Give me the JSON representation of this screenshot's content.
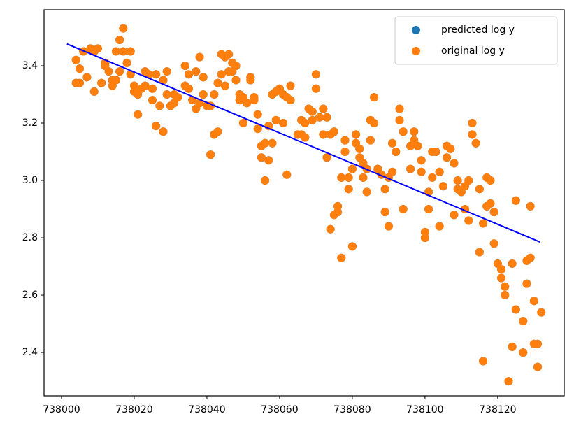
{
  "chart_data": {
    "type": "scatter",
    "x": [
      738004,
      738004,
      738005,
      738005,
      738006,
      738007,
      738008,
      738009,
      738009,
      738010,
      738011,
      738012,
      738012,
      738013,
      738014,
      738014,
      738015,
      738015,
      738016,
      738016,
      738017,
      738017,
      738018,
      738019,
      738019,
      738020,
      738020,
      738021,
      738021,
      738022,
      738023,
      738023,
      738024,
      738025,
      738025,
      738026,
      738026,
      738027,
      738028,
      738028,
      738029,
      738029,
      738030,
      738031,
      738031,
      738032,
      738034,
      738034,
      738035,
      738035,
      738036,
      738037,
      738037,
      738038,
      738038,
      738039,
      738039,
      738040,
      738041,
      738041,
      738042,
      738042,
      738043,
      738043,
      738044,
      738044,
      738045,
      738045,
      738046,
      738046,
      738047,
      738047,
      738048,
      738048,
      738049,
      738049,
      738050,
      738050,
      738051,
      738052,
      738052,
      738053,
      738053,
      738054,
      738054,
      738055,
      738055,
      738056,
      738056,
      738057,
      738057,
      738058,
      738058,
      738059,
      738059,
      738060,
      738061,
      738061,
      738062,
      738062,
      738063,
      738063,
      738065,
      738066,
      738066,
      738067,
      738067,
      738068,
      738069,
      738069,
      738070,
      738070,
      738071,
      738072,
      738072,
      738073,
      738073,
      738074,
      738074,
      738075,
      738075,
      738076,
      738076,
      738077,
      738077,
      738078,
      738078,
      738079,
      738079,
      738080,
      738080,
      738081,
      738081,
      738082,
      738082,
      738083,
      738083,
      738084,
      738084,
      738085,
      738085,
      738086,
      738086,
      738087,
      738088,
      738089,
      738089,
      738090,
      738090,
      738091,
      738091,
      738092,
      738093,
      738093,
      738094,
      738094,
      738096,
      738096,
      738097,
      738097,
      738098,
      738099,
      738099,
      738100,
      738100,
      738101,
      738101,
      738102,
      738102,
      738103,
      738104,
      738104,
      738105,
      738106,
      738106,
      738107,
      738108,
      738108,
      738109,
      738109,
      738110,
      738111,
      738111,
      738112,
      738112,
      738113,
      738113,
      738114,
      738115,
      738115,
      738116,
      738116,
      738117,
      738117,
      738118,
      738118,
      738119,
      738119,
      738120,
      738121,
      738121,
      738122,
      738122,
      738123,
      738124,
      738124,
      738125,
      738125,
      738127,
      738127,
      738128,
      738128,
      738129,
      738129,
      738130,
      738130,
      738131,
      738131,
      738132
    ],
    "series": [
      {
        "name": "predicted log y",
        "color": "#1f77b4",
        "values": [
          3.42,
          3.34,
          3.34,
          3.39,
          3.45,
          3.36,
          3.46,
          3.45,
          3.31,
          3.46,
          3.34,
          3.4,
          3.41,
          3.38,
          3.35,
          3.33,
          3.45,
          3.35,
          3.49,
          3.38,
          3.53,
          3.45,
          3.41,
          3.37,
          3.45,
          3.33,
          3.31,
          3.23,
          3.3,
          3.32,
          3.38,
          3.33,
          3.37,
          3.28,
          3.32,
          3.19,
          3.37,
          3.26,
          3.35,
          3.17,
          3.38,
          3.3,
          3.26,
          3.27,
          3.3,
          3.29,
          3.4,
          3.33,
          3.37,
          3.32,
          3.28,
          3.38,
          3.25,
          3.43,
          3.27,
          3.36,
          3.3,
          3.26,
          3.26,
          3.09,
          3.3,
          3.16,
          3.17,
          3.34,
          3.44,
          3.37,
          3.33,
          3.43,
          3.38,
          3.44,
          3.41,
          3.38,
          3.4,
          3.35,
          3.28,
          3.3,
          3.2,
          3.29,
          3.27,
          3.36,
          3.35,
          3.29,
          3.28,
          3.18,
          3.23,
          3.12,
          3.08,
          3.13,
          3.0,
          3.07,
          3.19,
          3.3,
          3.13,
          3.21,
          3.31,
          3.32,
          3.3,
          3.2,
          3.29,
          3.02,
          3.33,
          3.28,
          3.16,
          3.21,
          3.16,
          3.2,
          3.15,
          3.25,
          3.21,
          3.24,
          3.37,
          3.32,
          3.22,
          3.16,
          3.25,
          3.08,
          3.22,
          3.16,
          2.83,
          3.17,
          2.88,
          2.91,
          2.89,
          3.01,
          2.73,
          3.14,
          3.1,
          2.97,
          3.01,
          2.77,
          3.04,
          3.16,
          3.13,
          3.08,
          3.11,
          3.01,
          3.06,
          3.04,
          2.96,
          3.21,
          3.14,
          3.29,
          3.2,
          3.04,
          3.02,
          2.89,
          2.97,
          3.01,
          2.84,
          3.03,
          3.13,
          3.1,
          3.25,
          3.21,
          3.17,
          2.9,
          3.12,
          3.04,
          3.17,
          3.14,
          3.12,
          3.07,
          3.03,
          2.82,
          2.8,
          2.9,
          2.96,
          3.1,
          3.01,
          3.1,
          3.03,
          2.84,
          2.98,
          3.12,
          3.08,
          3.11,
          3.06,
          2.88,
          3.0,
          2.97,
          2.96,
          2.98,
          2.9,
          2.86,
          3.0,
          3.2,
          3.16,
          3.13,
          2.97,
          2.75,
          2.85,
          2.37,
          3.01,
          2.91,
          3.0,
          2.92,
          2.89,
          2.78,
          2.71,
          2.66,
          2.69,
          2.63,
          2.6,
          2.3,
          2.71,
          2.42,
          2.55,
          2.93,
          2.51,
          2.4,
          2.72,
          2.64,
          2.73,
          2.91,
          2.58,
          2.43,
          2.35,
          2.43,
          2.54
        ]
      },
      {
        "name": "original log y",
        "color": "#ff7f0e",
        "values": [
          3.42,
          3.34,
          3.34,
          3.39,
          3.45,
          3.36,
          3.46,
          3.45,
          3.31,
          3.46,
          3.34,
          3.4,
          3.41,
          3.38,
          3.35,
          3.33,
          3.45,
          3.35,
          3.49,
          3.38,
          3.53,
          3.45,
          3.41,
          3.37,
          3.45,
          3.33,
          3.31,
          3.23,
          3.3,
          3.32,
          3.38,
          3.33,
          3.37,
          3.28,
          3.32,
          3.19,
          3.37,
          3.26,
          3.35,
          3.17,
          3.38,
          3.3,
          3.26,
          3.27,
          3.3,
          3.29,
          3.4,
          3.33,
          3.37,
          3.32,
          3.28,
          3.38,
          3.25,
          3.43,
          3.27,
          3.36,
          3.3,
          3.26,
          3.26,
          3.09,
          3.3,
          3.16,
          3.17,
          3.34,
          3.44,
          3.37,
          3.33,
          3.43,
          3.38,
          3.44,
          3.41,
          3.38,
          3.4,
          3.35,
          3.28,
          3.3,
          3.2,
          3.29,
          3.27,
          3.36,
          3.35,
          3.29,
          3.28,
          3.18,
          3.23,
          3.12,
          3.08,
          3.13,
          3.0,
          3.07,
          3.19,
          3.3,
          3.13,
          3.21,
          3.31,
          3.32,
          3.3,
          3.2,
          3.29,
          3.02,
          3.33,
          3.28,
          3.16,
          3.21,
          3.16,
          3.2,
          3.15,
          3.25,
          3.21,
          3.24,
          3.37,
          3.32,
          3.22,
          3.16,
          3.25,
          3.08,
          3.22,
          3.16,
          2.83,
          3.17,
          2.88,
          2.91,
          2.89,
          3.01,
          2.73,
          3.14,
          3.1,
          2.97,
          3.01,
          2.77,
          3.04,
          3.16,
          3.13,
          3.08,
          3.11,
          3.01,
          3.06,
          3.04,
          2.96,
          3.21,
          3.14,
          3.29,
          3.2,
          3.04,
          3.02,
          2.89,
          2.97,
          3.01,
          2.84,
          3.03,
          3.13,
          3.1,
          3.25,
          3.21,
          3.17,
          2.9,
          3.12,
          3.04,
          3.17,
          3.14,
          3.12,
          3.07,
          3.03,
          2.82,
          2.8,
          2.9,
          2.96,
          3.1,
          3.01,
          3.1,
          3.03,
          2.84,
          2.98,
          3.12,
          3.08,
          3.11,
          3.06,
          2.88,
          3.0,
          2.97,
          2.96,
          2.98,
          2.9,
          2.86,
          3.0,
          3.2,
          3.16,
          3.13,
          2.97,
          2.75,
          2.85,
          2.37,
          3.01,
          2.91,
          3.0,
          2.92,
          2.89,
          2.78,
          2.71,
          2.66,
          2.69,
          2.63,
          2.6,
          2.3,
          2.71,
          2.42,
          2.55,
          2.93,
          2.51,
          2.4,
          2.72,
          2.64,
          2.73,
          2.91,
          2.58,
          2.43,
          2.35,
          2.43,
          2.54
        ]
      }
    ],
    "line": {
      "x": [
        738001.5,
        738131.7
      ],
      "y": [
        3.476,
        2.785
      ],
      "color": "#0000ff"
    },
    "xlim": [
      737995.2,
      738138.3
    ],
    "xticks": [
      738000,
      738020,
      738040,
      738060,
      738080,
      738100,
      738120
    ],
    "ylim": [
      2.249,
      3.595
    ],
    "yticks": [
      2.4,
      2.6,
      2.8,
      {
        "value": 3,
        "label": "3.0"
      },
      3.2,
      3.4
    ],
    "grid": false,
    "legend": "upper right"
  }
}
